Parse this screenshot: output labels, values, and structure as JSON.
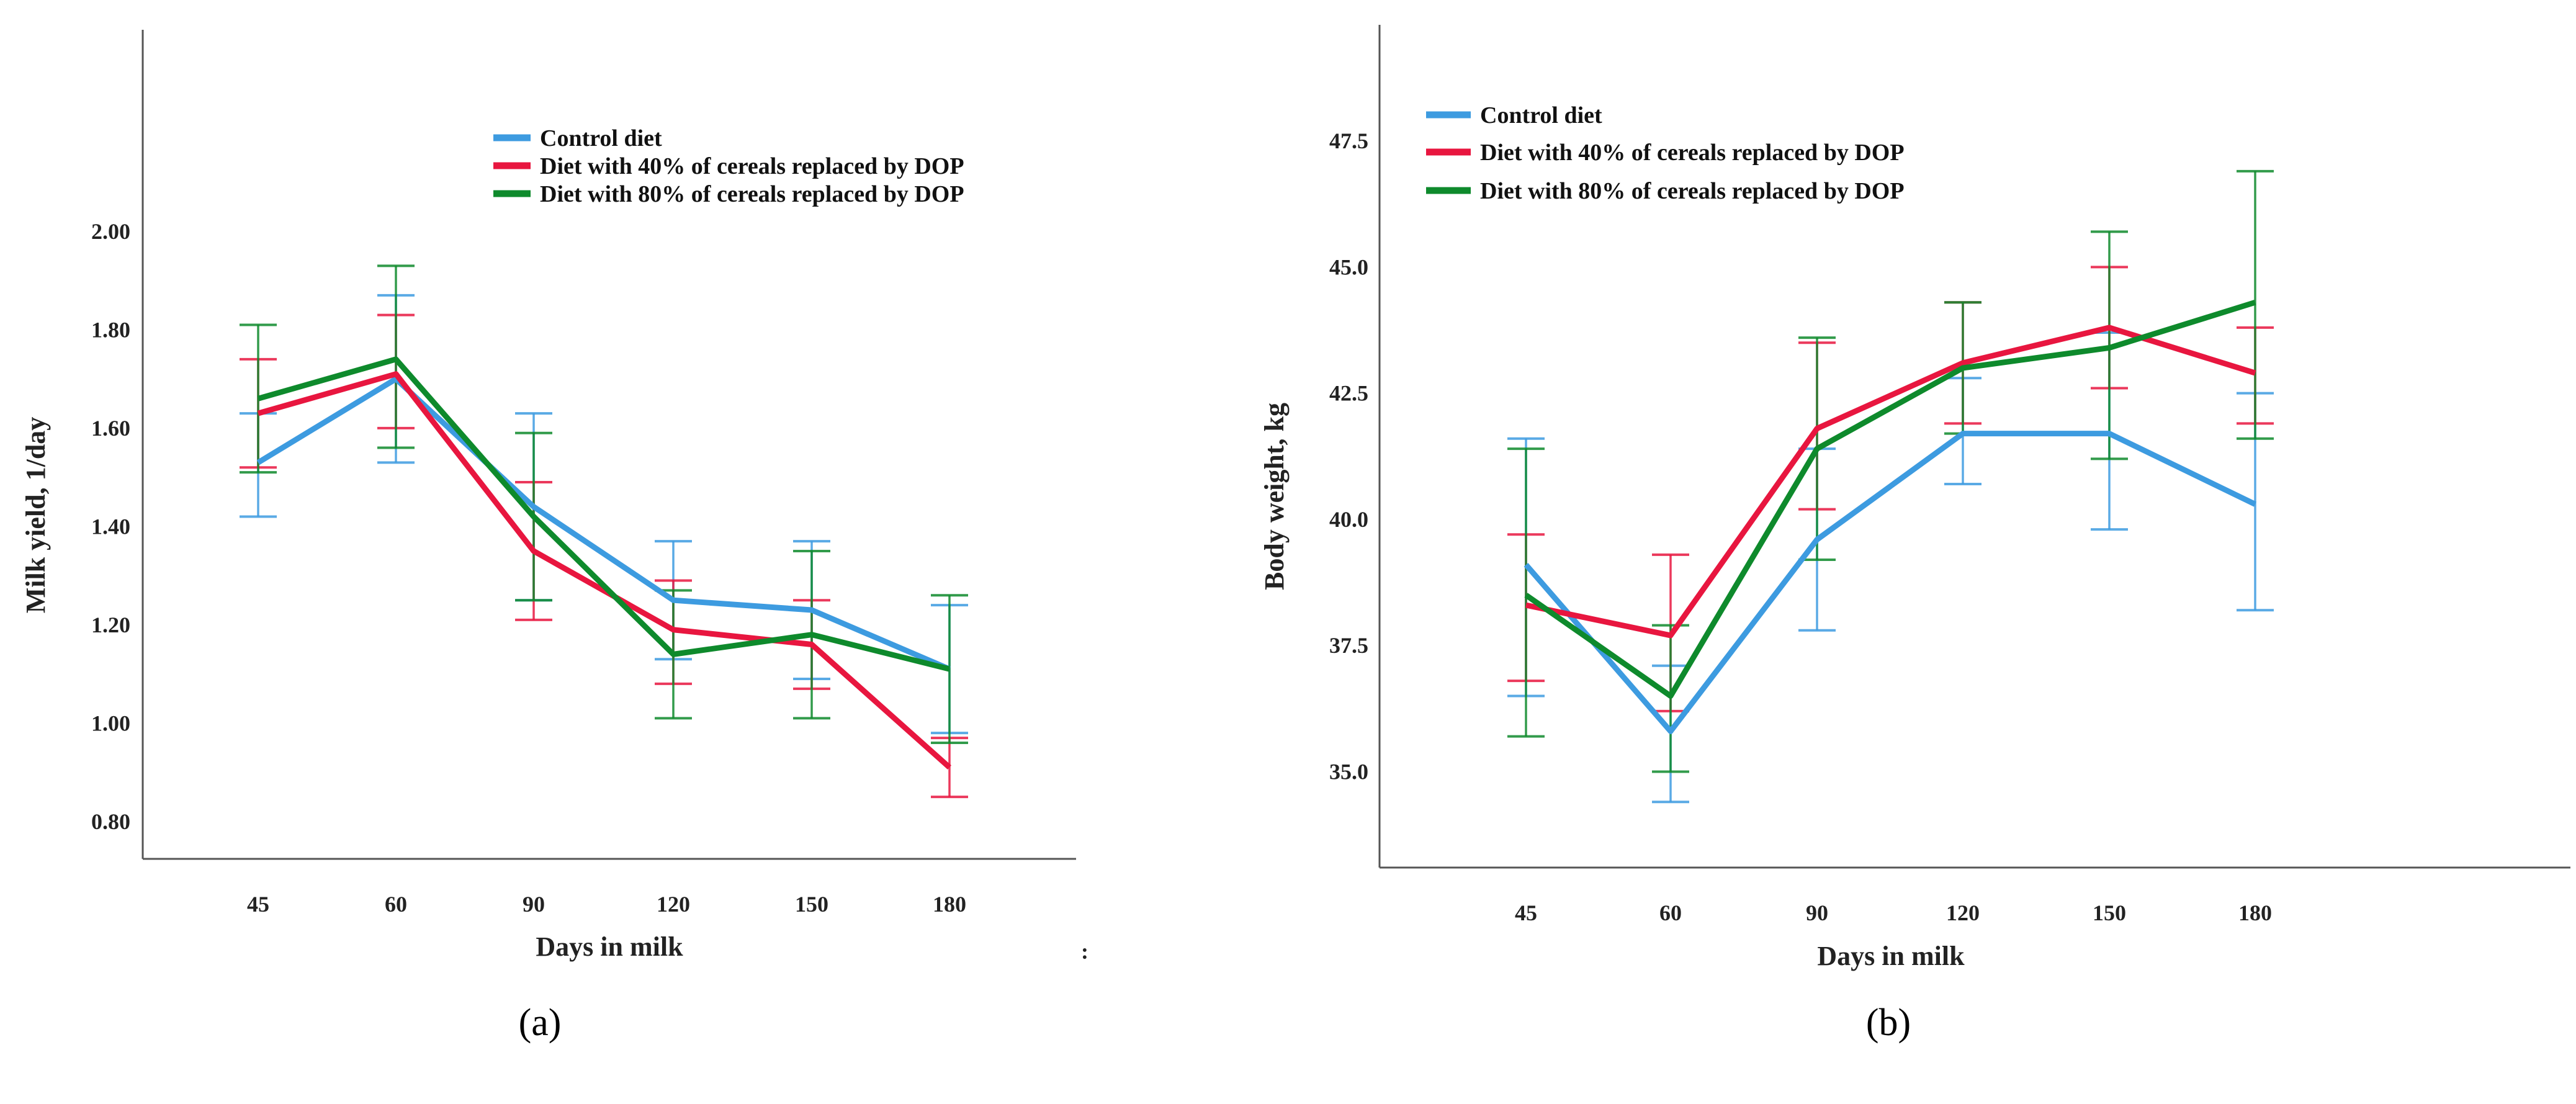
{
  "chart_data": [
    {
      "type": "line",
      "panel_label": "(a)",
      "title": "",
      "xlabel": "Days in milk",
      "ylabel": "Milk yield, 1/day",
      "categories": [
        "45",
        "60",
        "90",
        "120",
        "150",
        "180"
      ],
      "yticks": [
        "0.80",
        "1.00",
        "1.20",
        "1.40",
        "1.60",
        "1.80",
        "2.00"
      ],
      "ylim": [
        0.724,
        2.41
      ],
      "legend_position": "top-right",
      "error_bars": true,
      "series": [
        {
          "name": "Control diet",
          "color": "#3d9be0",
          "values": [
            1.53,
            1.7,
            1.44,
            1.25,
            1.23,
            1.11
          ],
          "lower": [
            1.42,
            1.53,
            1.25,
            1.13,
            1.09,
            0.98
          ],
          "upper": [
            1.63,
            1.87,
            1.63,
            1.37,
            1.37,
            1.24
          ]
        },
        {
          "name": "Diet with 40% of cereals replaced by DOP",
          "color": "#e8163f",
          "values": [
            1.63,
            1.71,
            1.35,
            1.19,
            1.16,
            0.91
          ],
          "lower": [
            1.52,
            1.6,
            1.21,
            1.08,
            1.07,
            0.85
          ],
          "upper": [
            1.74,
            1.83,
            1.49,
            1.29,
            1.25,
            0.97
          ]
        },
        {
          "name": "Diet with 80% of cereals replaced by DOP",
          "color": "#0e8a2c",
          "values": [
            1.66,
            1.74,
            1.42,
            1.14,
            1.18,
            1.11
          ],
          "lower": [
            1.51,
            1.56,
            1.25,
            1.01,
            1.01,
            0.96
          ],
          "upper": [
            1.81,
            1.93,
            1.59,
            1.27,
            1.35,
            1.26
          ]
        }
      ],
      "stray_mark": ":"
    },
    {
      "type": "line",
      "panel_label": "(b)",
      "title": "",
      "xlabel": "Days in milk",
      "ylabel": "Body weight, kg",
      "categories": [
        "45",
        "60",
        "90",
        "120",
        "150",
        "180"
      ],
      "yticks": [
        "35.0",
        "37.5",
        "40.0",
        "42.5",
        "45.0",
        "47.5"
      ],
      "ylim": [
        33.1,
        49.8
      ],
      "legend_position": "top-left",
      "error_bars": true,
      "series": [
        {
          "name": "Control diet",
          "color": "#3d9be0",
          "values": [
            39.1,
            35.8,
            39.6,
            41.7,
            41.7,
            40.3
          ],
          "lower": [
            36.5,
            34.4,
            37.8,
            40.7,
            39.8,
            38.2
          ],
          "upper": [
            41.6,
            37.1,
            41.4,
            42.8,
            43.7,
            42.5
          ]
        },
        {
          "name": "Diet with 40% of cereals replaced by DOP",
          "color": "#e8163f",
          "values": [
            38.3,
            37.7,
            41.8,
            43.1,
            43.8,
            42.9
          ],
          "lower": [
            36.8,
            36.2,
            40.2,
            41.9,
            42.6,
            41.9
          ],
          "upper": [
            39.7,
            39.3,
            43.5,
            44.3,
            45.0,
            43.8
          ]
        },
        {
          "name": "Diet with 80% of cereals replaced by DOP",
          "color": "#0e8a2c",
          "values": [
            38.5,
            36.5,
            41.4,
            43.0,
            43.4,
            44.3
          ],
          "lower": [
            35.7,
            35.0,
            39.2,
            41.7,
            41.2,
            41.6
          ],
          "upper": [
            41.4,
            37.9,
            43.6,
            44.3,
            45.7,
            46.9
          ]
        }
      ]
    }
  ]
}
